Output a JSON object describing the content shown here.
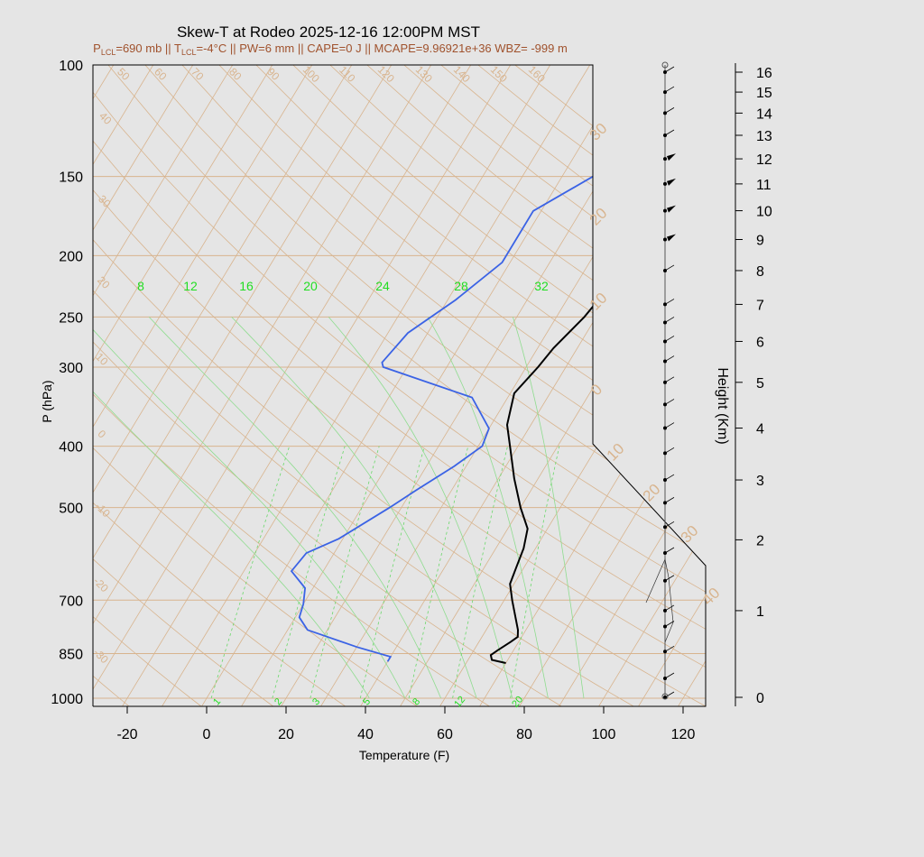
{
  "chart_data": {
    "type": "line",
    "title": "Skew-T at Rodeo 2025-12-16 12:00PM MST",
    "subtitle": {
      "plcl_prefix": "P",
      "plcl_sub": "LCL",
      "plcl_value": "=690 mb || T",
      "tlcl_sub": "LCL",
      "rest": "=-4°C || PW=6 mm || CAPE=0 J || MCAPE=9.96921e+36 WBZ= -999 m"
    },
    "xlabel": "Temperature (F)",
    "ylabel": "P (hPa)",
    "y2label": "Height (Km)",
    "x_ticks": [
      "-20",
      "0",
      "20",
      "40",
      "60",
      "80",
      "100",
      "120"
    ],
    "x_tick_values": [
      -20,
      0,
      20,
      40,
      60,
      80,
      100,
      120
    ],
    "xlim": [
      -28,
      125
    ],
    "ylim": [
      1050,
      100
    ],
    "y_scale": "log",
    "p_ticks": [
      "100",
      "150",
      "200",
      "250",
      "300",
      "400",
      "500",
      "700",
      "850",
      "1000"
    ],
    "p_tick_values": [
      100,
      150,
      200,
      250,
      300,
      400,
      500,
      700,
      850,
      1000
    ],
    "height_ticks": [
      "0",
      "1",
      "2",
      "3",
      "4",
      "5",
      "6",
      "7",
      "8",
      "9",
      "10",
      "11",
      "12",
      "13",
      "14",
      "15",
      "16"
    ],
    "isotherm_labels": [
      "50",
      "60",
      "70",
      "80",
      "90",
      "100",
      "110",
      "120",
      "130",
      "140",
      "150",
      "160",
      "40",
      "30",
      "20",
      "10",
      "0",
      "-10",
      "-20",
      "-30",
      "30",
      "20",
      "10",
      "0",
      "10",
      "20",
      "30",
      "40"
    ],
    "mixing_ratio_top_labels": [
      "8",
      "12",
      "16",
      "20",
      "24",
      "28",
      "32"
    ],
    "mixing_ratio_bottom_labels": [
      "1",
      "2",
      "3",
      "5",
      "8",
      "12",
      "20"
    ],
    "series": [
      {
        "name": "temperature",
        "color": "#000000",
        "points": [
          {
            "p": 880,
            "t": 70
          },
          {
            "p": 870,
            "t": 66
          },
          {
            "p": 855,
            "t": 65
          },
          {
            "p": 840,
            "t": 66
          },
          {
            "p": 815,
            "t": 68
          },
          {
            "p": 800,
            "t": 69
          },
          {
            "p": 780,
            "t": 68
          },
          {
            "p": 700,
            "t": 62
          },
          {
            "p": 660,
            "t": 59
          },
          {
            "p": 620,
            "t": 58
          },
          {
            "p": 580,
            "t": 57
          },
          {
            "p": 540,
            "t": 55
          },
          {
            "p": 500,
            "t": 50
          },
          {
            "p": 450,
            "t": 44
          },
          {
            "p": 400,
            "t": 38
          },
          {
            "p": 370,
            "t": 34
          },
          {
            "p": 330,
            "t": 31
          },
          {
            "p": 300,
            "t": 33
          },
          {
            "p": 280,
            "t": 34
          },
          {
            "p": 250,
            "t": 37
          },
          {
            "p": 220,
            "t": 39
          },
          {
            "p": 200,
            "t": 41
          },
          {
            "p": 170,
            "t": 43
          },
          {
            "p": 150,
            "t": 45
          },
          {
            "p": 135,
            "t": 48
          },
          {
            "p": 125,
            "t": 55
          },
          {
            "p": 110,
            "t": 66
          },
          {
            "p": 100,
            "t": 74
          }
        ]
      },
      {
        "name": "dewpoint",
        "color": "#3b63e5",
        "points": [
          {
            "p": 875,
            "t": 40
          },
          {
            "p": 860,
            "t": 40
          },
          {
            "p": 830,
            "t": 30
          },
          {
            "p": 780,
            "t": 15
          },
          {
            "p": 745,
            "t": 11
          },
          {
            "p": 710,
            "t": 10
          },
          {
            "p": 670,
            "t": 8
          },
          {
            "p": 630,
            "t": 2
          },
          {
            "p": 590,
            "t": 3
          },
          {
            "p": 560,
            "t": 9
          },
          {
            "p": 500,
            "t": 17
          },
          {
            "p": 470,
            "t": 21
          },
          {
            "p": 430,
            "t": 27
          },
          {
            "p": 400,
            "t": 31
          },
          {
            "p": 375,
            "t": 30
          },
          {
            "p": 335,
            "t": 21
          },
          {
            "p": 300,
            "t": -6
          },
          {
            "p": 295,
            "t": -7
          },
          {
            "p": 265,
            "t": -5
          },
          {
            "p": 235,
            "t": 2
          },
          {
            "p": 205,
            "t": 8
          },
          {
            "p": 170,
            "t": 8
          },
          {
            "p": 135,
            "t": 26
          },
          {
            "p": 100,
            "t": 53
          }
        ]
      }
    ],
    "wind_profile": {
      "levels_km": [
        0,
        0.2,
        0.5,
        0.8,
        1.0,
        1.4,
        1.8,
        2.2,
        2.6,
        3.0,
        3.5,
        4.0,
        4.5,
        5.0,
        5.5,
        6.0,
        6.5,
        7.0,
        8.0,
        9.0,
        10.0,
        11.0,
        12.0,
        13.0,
        14.0,
        15.0,
        16.0
      ]
    }
  }
}
